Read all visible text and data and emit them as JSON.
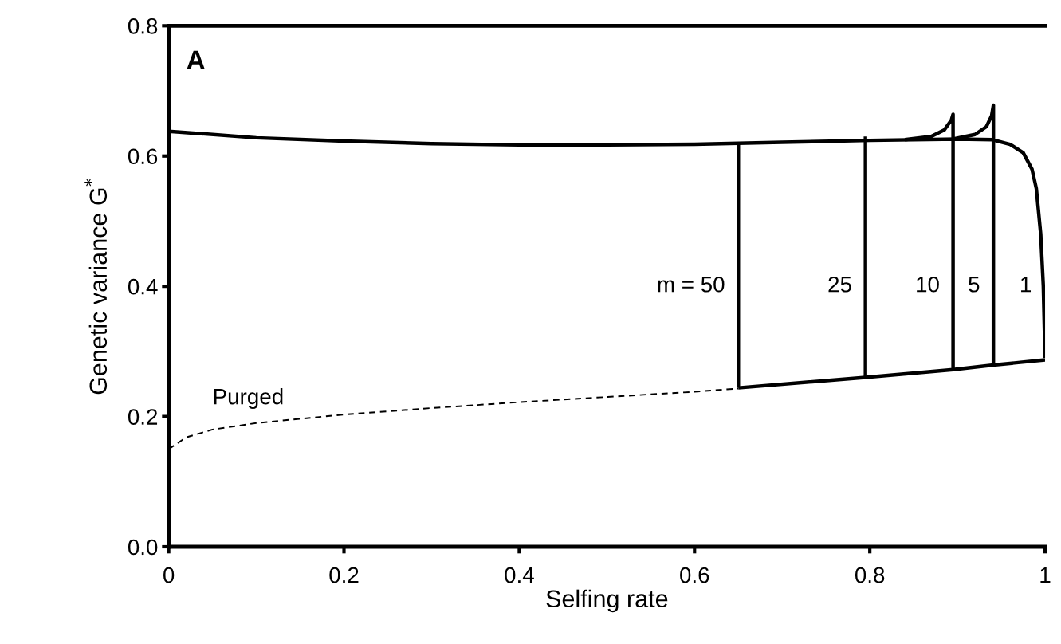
{
  "chart_data": {
    "type": "line",
    "xlabel": "Selfing rate",
    "ylabel": "Genetic variance G$^{*}$",
    "xlim": [
      0,
      1
    ],
    "ylim": [
      0,
      0.8
    ],
    "xticks": [
      0,
      0.2,
      0.4,
      0.6,
      0.8,
      1
    ],
    "yticks": [
      {
        "value": 0,
        "label": "0.0"
      },
      0.2,
      0.4,
      0.6,
      0.8
    ],
    "grid": false,
    "legend": false,
    "marker": "none",
    "series": [
      {
        "name": "1",
        "color": "#000000",
        "line_style": "solid",
        "x": [
          0,
          0.1,
          0.2,
          0.3,
          0.4,
          0.5,
          0.6,
          0.7,
          0.8,
          0.9,
          0.94,
          0.96,
          0.975,
          0.985,
          0.99,
          0.995,
          0.998,
          1.0
        ],
        "values": [
          0.638,
          0.628,
          0.623,
          0.619,
          0.617,
          0.617,
          0.618,
          0.621,
          0.624,
          0.626,
          0.625,
          0.618,
          0.605,
          0.58,
          0.55,
          0.48,
          0.4,
          0.29
        ]
      },
      {
        "name": "Purged",
        "color": "#000000",
        "line_style": "dashed",
        "x": [
          0,
          0.02,
          0.05,
          0.1,
          0.2,
          0.3,
          0.4,
          0.5,
          0.6,
          0.65
        ],
        "values": [
          0.15,
          0.168,
          0.18,
          0.19,
          0.203,
          0.213,
          0.222,
          0.23,
          0.238,
          0.243
        ]
      },
      {
        "color": "#000000",
        "line_style": "solid",
        "x": [
          0.65,
          0.795,
          0.895,
          0.941,
          1.0
        ],
        "values": [
          0.244,
          0.26,
          0.272,
          0.279,
          0.287
        ]
      },
      {
        "name": "m = 50",
        "color": "#000000",
        "line_style": "solid",
        "x": [
          0.65,
          0.65
        ],
        "values": [
          0.244,
          0.62
        ]
      },
      {
        "name": "25",
        "color": "#000000",
        "line_style": "solid",
        "x": [
          0.795,
          0.795
        ],
        "values": [
          0.26,
          0.63
        ]
      },
      {
        "name": "10",
        "color": "#000000",
        "line_style": "solid",
        "x": [
          0.84,
          0.87,
          0.885,
          0.893,
          0.895,
          0.895
        ],
        "values": [
          0.625,
          0.63,
          0.64,
          0.655,
          0.664,
          0.272
        ]
      },
      {
        "name": "5",
        "color": "#000000",
        "line_style": "solid",
        "x": [
          0.895,
          0.92,
          0.933,
          0.939,
          0.941,
          0.941
        ],
        "values": [
          0.626,
          0.633,
          0.645,
          0.662,
          0.678,
          0.279
        ]
      }
    ],
    "annotations": [
      "A"
    ]
  }
}
